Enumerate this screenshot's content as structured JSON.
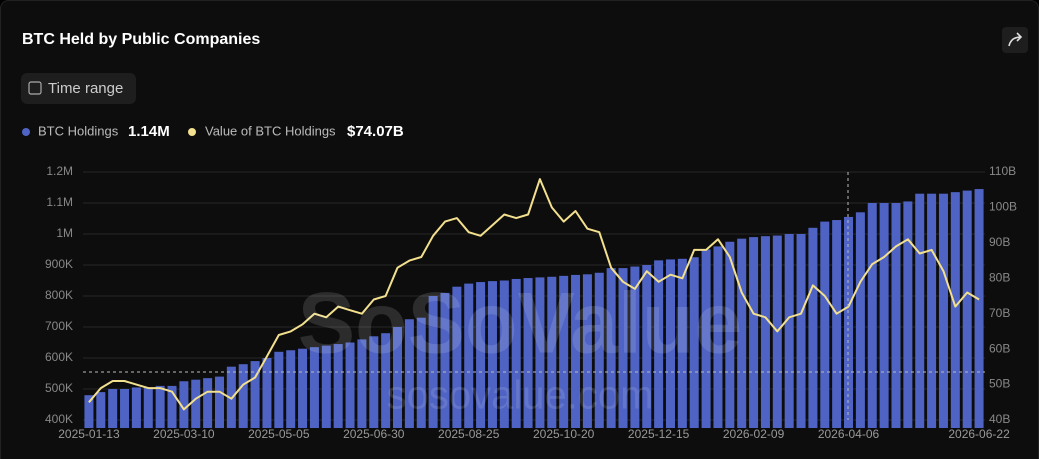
{
  "header": {
    "title": "BTC Held by Public Companies",
    "time_range": "Time range"
  },
  "watermark": {
    "brand": "SoSoValue",
    "site": "sosovalue.com"
  },
  "chart_data": {
    "type": "combo",
    "categories": [
      "2025-01-13",
      null,
      null,
      null,
      null,
      null,
      null,
      null,
      "2025-03-10",
      null,
      null,
      null,
      null,
      null,
      null,
      null,
      "2025-05-05",
      null,
      null,
      null,
      null,
      null,
      null,
      null,
      "2025-06-30",
      null,
      null,
      null,
      null,
      null,
      null,
      null,
      "2025-08-25",
      null,
      null,
      null,
      null,
      null,
      null,
      null,
      "2025-10-20",
      null,
      null,
      null,
      null,
      null,
      null,
      null,
      "2025-12-15",
      null,
      null,
      null,
      null,
      null,
      null,
      null,
      "2026-02-09",
      null,
      null,
      null,
      null,
      null,
      null,
      null,
      "2026-04-06",
      null,
      null,
      null,
      null,
      null,
      null,
      null,
      null,
      null,
      null,
      "2026-06-22"
    ],
    "series": [
      {
        "name": "BTC Holdings",
        "type": "bar",
        "color": "#4e63c4",
        "latest_label": "1.14M",
        "values": [
          480000,
          490000,
          500000,
          500000,
          505000,
          505000,
          510000,
          510000,
          525000,
          530000,
          535000,
          540000,
          572000,
          580000,
          590000,
          600000,
          620000,
          625000,
          630000,
          635000,
          640000,
          645000,
          650000,
          660000,
          670000,
          680000,
          700000,
          725000,
          730000,
          800000,
          810000,
          830000,
          840000,
          845000,
          848000,
          850000,
          855000,
          858000,
          860000,
          862000,
          865000,
          868000,
          870000,
          875000,
          890000,
          890000,
          895000,
          900000,
          915000,
          918000,
          920000,
          925000,
          950000,
          960000,
          975000,
          985000,
          990000,
          993000,
          995000,
          1000000,
          1000000,
          1020000,
          1040000,
          1045000,
          1055000,
          1070000,
          1100000,
          1100000,
          1100000,
          1105000,
          1130000,
          1130000,
          1130000,
          1135000,
          1140000,
          1145000
        ]
      },
      {
        "name": "Value of BTC Holdings",
        "type": "line",
        "axis": "y2",
        "color": "#f3e08e",
        "latest_label": "$74.07B",
        "values": [
          45,
          49,
          51,
          51,
          50,
          49,
          49,
          48,
          43,
          46,
          48,
          48,
          46,
          50,
          52,
          58,
          64,
          65,
          67,
          70,
          69,
          72,
          71,
          70,
          74,
          75,
          83,
          85,
          86,
          92,
          96,
          97,
          93,
          92,
          95,
          98,
          97,
          98,
          108,
          100,
          96,
          99,
          94,
          93,
          83,
          79,
          77,
          82,
          79,
          81,
          80,
          88,
          88,
          91,
          86,
          76,
          70,
          69,
          65,
          69,
          70,
          78,
          75,
          70,
          72,
          79,
          84,
          86,
          89,
          91,
          87,
          88,
          82,
          72,
          76,
          74
        ]
      }
    ],
    "ylim": [
      400000,
      1200000
    ],
    "yticks": [
      {
        "value": 400000,
        "label": "400K"
      },
      {
        "value": 500000,
        "label": "500K"
      },
      {
        "value": 600000,
        "label": "600K"
      },
      {
        "value": 700000,
        "label": "700K"
      },
      {
        "value": 800000,
        "label": "800K"
      },
      {
        "value": 900000,
        "label": "900K"
      },
      {
        "value": 1000000,
        "label": "1M"
      },
      {
        "value": 1100000,
        "label": "1.1M"
      },
      {
        "value": 1200000,
        "label": "1.2M"
      }
    ],
    "y2lim": [
      40,
      110
    ],
    "y2ticks": [
      {
        "value": 40,
        "label": "40B"
      },
      {
        "value": 50,
        "label": "50B"
      },
      {
        "value": 60,
        "label": "60B"
      },
      {
        "value": 70,
        "label": "70B"
      },
      {
        "value": 80,
        "label": "80B"
      },
      {
        "value": 90,
        "label": "90B"
      },
      {
        "value": 100,
        "label": "100B"
      },
      {
        "value": 110,
        "label": "110B"
      }
    ],
    "grid": true
  }
}
